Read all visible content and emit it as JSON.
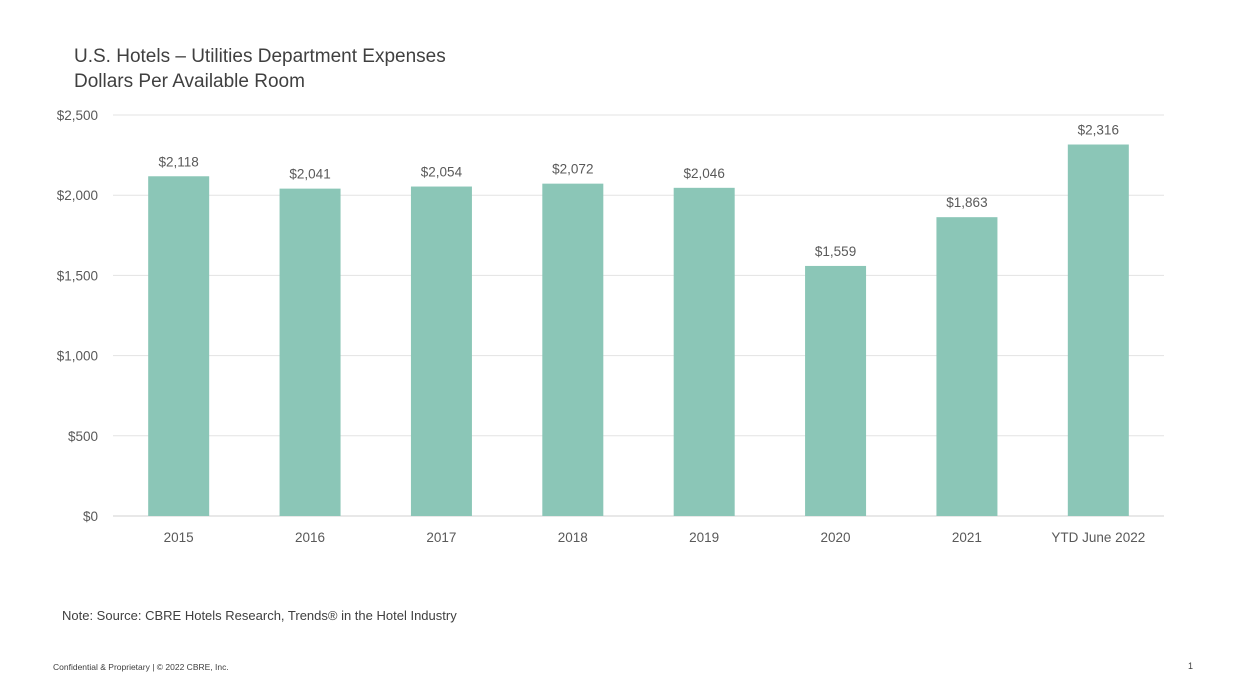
{
  "chart_data": {
    "type": "bar",
    "title": "U.S. Hotels – Utilities Department Expenses",
    "subtitle": "Dollars Per Available Room",
    "categories": [
      "2015",
      "2016",
      "2017",
      "2018",
      "2019",
      "2020",
      "2021",
      "YTD June 2022"
    ],
    "values": [
      2118,
      2041,
      2054,
      2072,
      2046,
      1559,
      1863,
      2316
    ],
    "value_labels": [
      "$2,118",
      "$2,041",
      "$2,054",
      "$2,072",
      "$2,046",
      "$1,559",
      "$1,863",
      "$2,316"
    ],
    "yticks": [
      0,
      500,
      1000,
      1500,
      2000,
      2500
    ],
    "ytick_labels": [
      "$0",
      "$500",
      "$1,000",
      "$1,500",
      "$2,000",
      "$2,500"
    ],
    "ylim": [
      0,
      2500
    ],
    "grid": true,
    "legend": "none",
    "bar_color": "#8BC6B7"
  },
  "note": "Note:  Source: CBRE Hotels Research, Trends® in the Hotel Industry",
  "footer": "Confidential & Proprietary | © 2022 CBRE, Inc.",
  "page_number": "1"
}
